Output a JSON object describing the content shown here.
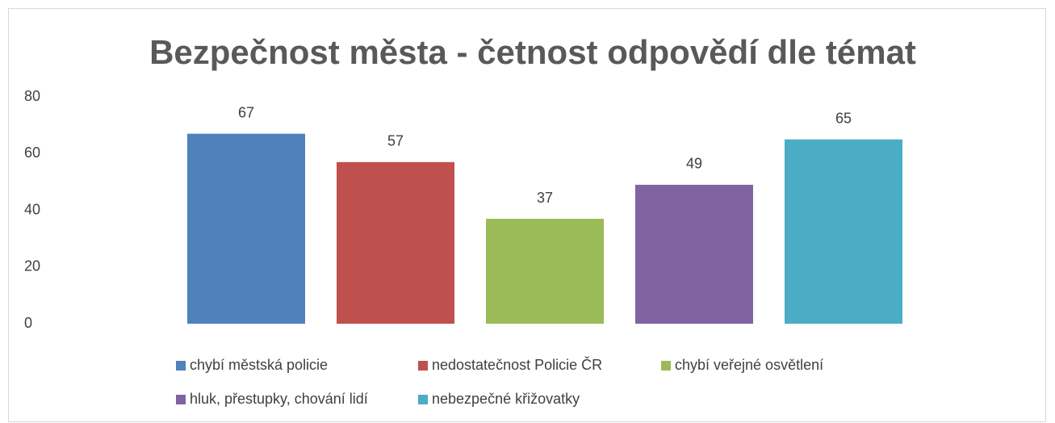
{
  "chart_data": {
    "type": "bar",
    "title": "Bezpečnost města - četnost odpovědí dle témat",
    "categories": [
      null
    ],
    "series": [
      {
        "name": "chybí městská policie",
        "color": "#4f81bd",
        "values": [
          67
        ]
      },
      {
        "name": "nedostatečnost Policie ČR",
        "color": "#c0504d",
        "values": [
          57
        ]
      },
      {
        "name": "chybí veřejné osvětlení",
        "color": "#9bbb59",
        "values": [
          37
        ]
      },
      {
        "name": "hluk, přestupky, chování lidí",
        "color": "#8064a2",
        "values": [
          49
        ]
      },
      {
        "name": "nebezpečné křižovatky",
        "color": "#4bacc6",
        "values": [
          65
        ]
      }
    ],
    "ylim": [
      0,
      80
    ],
    "yticks": [
      0,
      20,
      40,
      60,
      80
    ],
    "grid": false,
    "legend": "bottom"
  }
}
